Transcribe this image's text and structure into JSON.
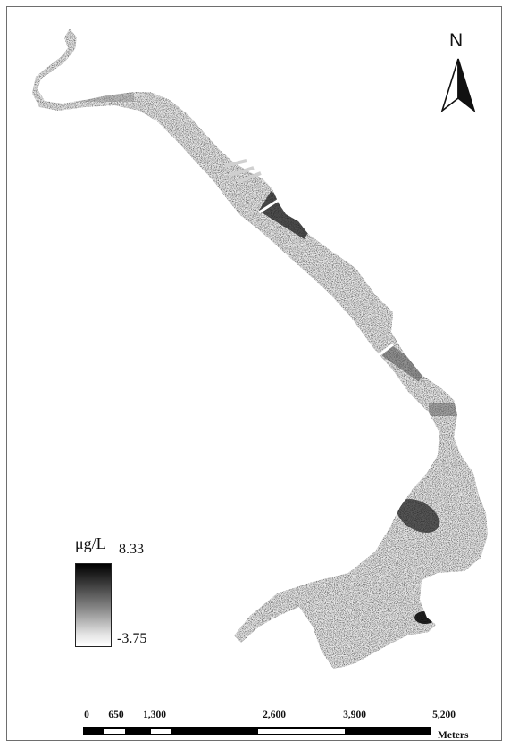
{
  "north_arrow": {
    "label": "N"
  },
  "legend": {
    "unit": "μg/L",
    "max_label": "8.33",
    "min_label": "-3.75",
    "ramp_colors": [
      "#000000",
      "#ffffff"
    ]
  },
  "scale_bar": {
    "ticks": [
      "0",
      "650",
      "1,300",
      "2,600",
      "3,900",
      "5,200"
    ],
    "unit": "Meters"
  }
}
